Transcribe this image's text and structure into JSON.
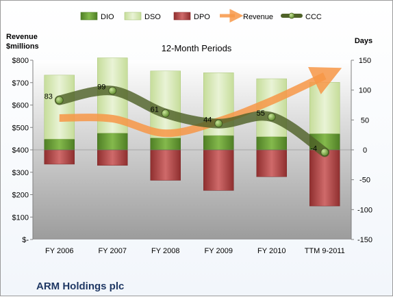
{
  "chart_data": {
    "type": "bar",
    "title": "12-Month Periods",
    "company": "ARM Holdings plc",
    "categories": [
      "FY 2006",
      "FY 2007",
      "FY 2008",
      "FY 2009",
      "FY 2010",
      "TTM 9-2011"
    ],
    "left_axis": {
      "label_line1": "Revenue",
      "label_line2": "$millions",
      "range": [
        0,
        800
      ],
      "ticks": [
        "$-",
        "$100",
        "$200",
        "$300",
        "$400",
        "$500",
        "$600",
        "$700",
        "$800"
      ]
    },
    "right_axis": {
      "label": "Days",
      "range": [
        -150,
        150
      ],
      "ticks": [
        "150",
        "100",
        "50",
        "0",
        "-50",
        "-100",
        "-150"
      ]
    },
    "series": [
      {
        "name": "DIO",
        "type": "stacked-bar",
        "axis": "right",
        "color": "#6fa23a",
        "values": [
          18,
          28,
          20,
          24,
          22,
          27
        ]
      },
      {
        "name": "DSO",
        "type": "stacked-bar",
        "axis": "right",
        "color": "#d6e8b4",
        "values": [
          107,
          126,
          112,
          105,
          97,
          86
        ]
      },
      {
        "name": "DPO",
        "type": "bar",
        "axis": "right",
        "color": "#b84a4a",
        "values": [
          -24,
          -26,
          -51,
          -68,
          -45,
          -94
        ]
      },
      {
        "name": "Revenue",
        "type": "line",
        "axis": "left",
        "color": "#f79646",
        "values": [
          542,
          539,
          474,
          528,
          619,
          730
        ]
      },
      {
        "name": "CCC",
        "type": "line",
        "axis": "right",
        "color": "#4f6228",
        "values": [
          83,
          99,
          61,
          44,
          55,
          -4
        ]
      }
    ],
    "data_labels": [
      "83",
      "99",
      "61",
      "44",
      "55",
      "-4"
    ],
    "grid": false,
    "legend_position": "top"
  }
}
